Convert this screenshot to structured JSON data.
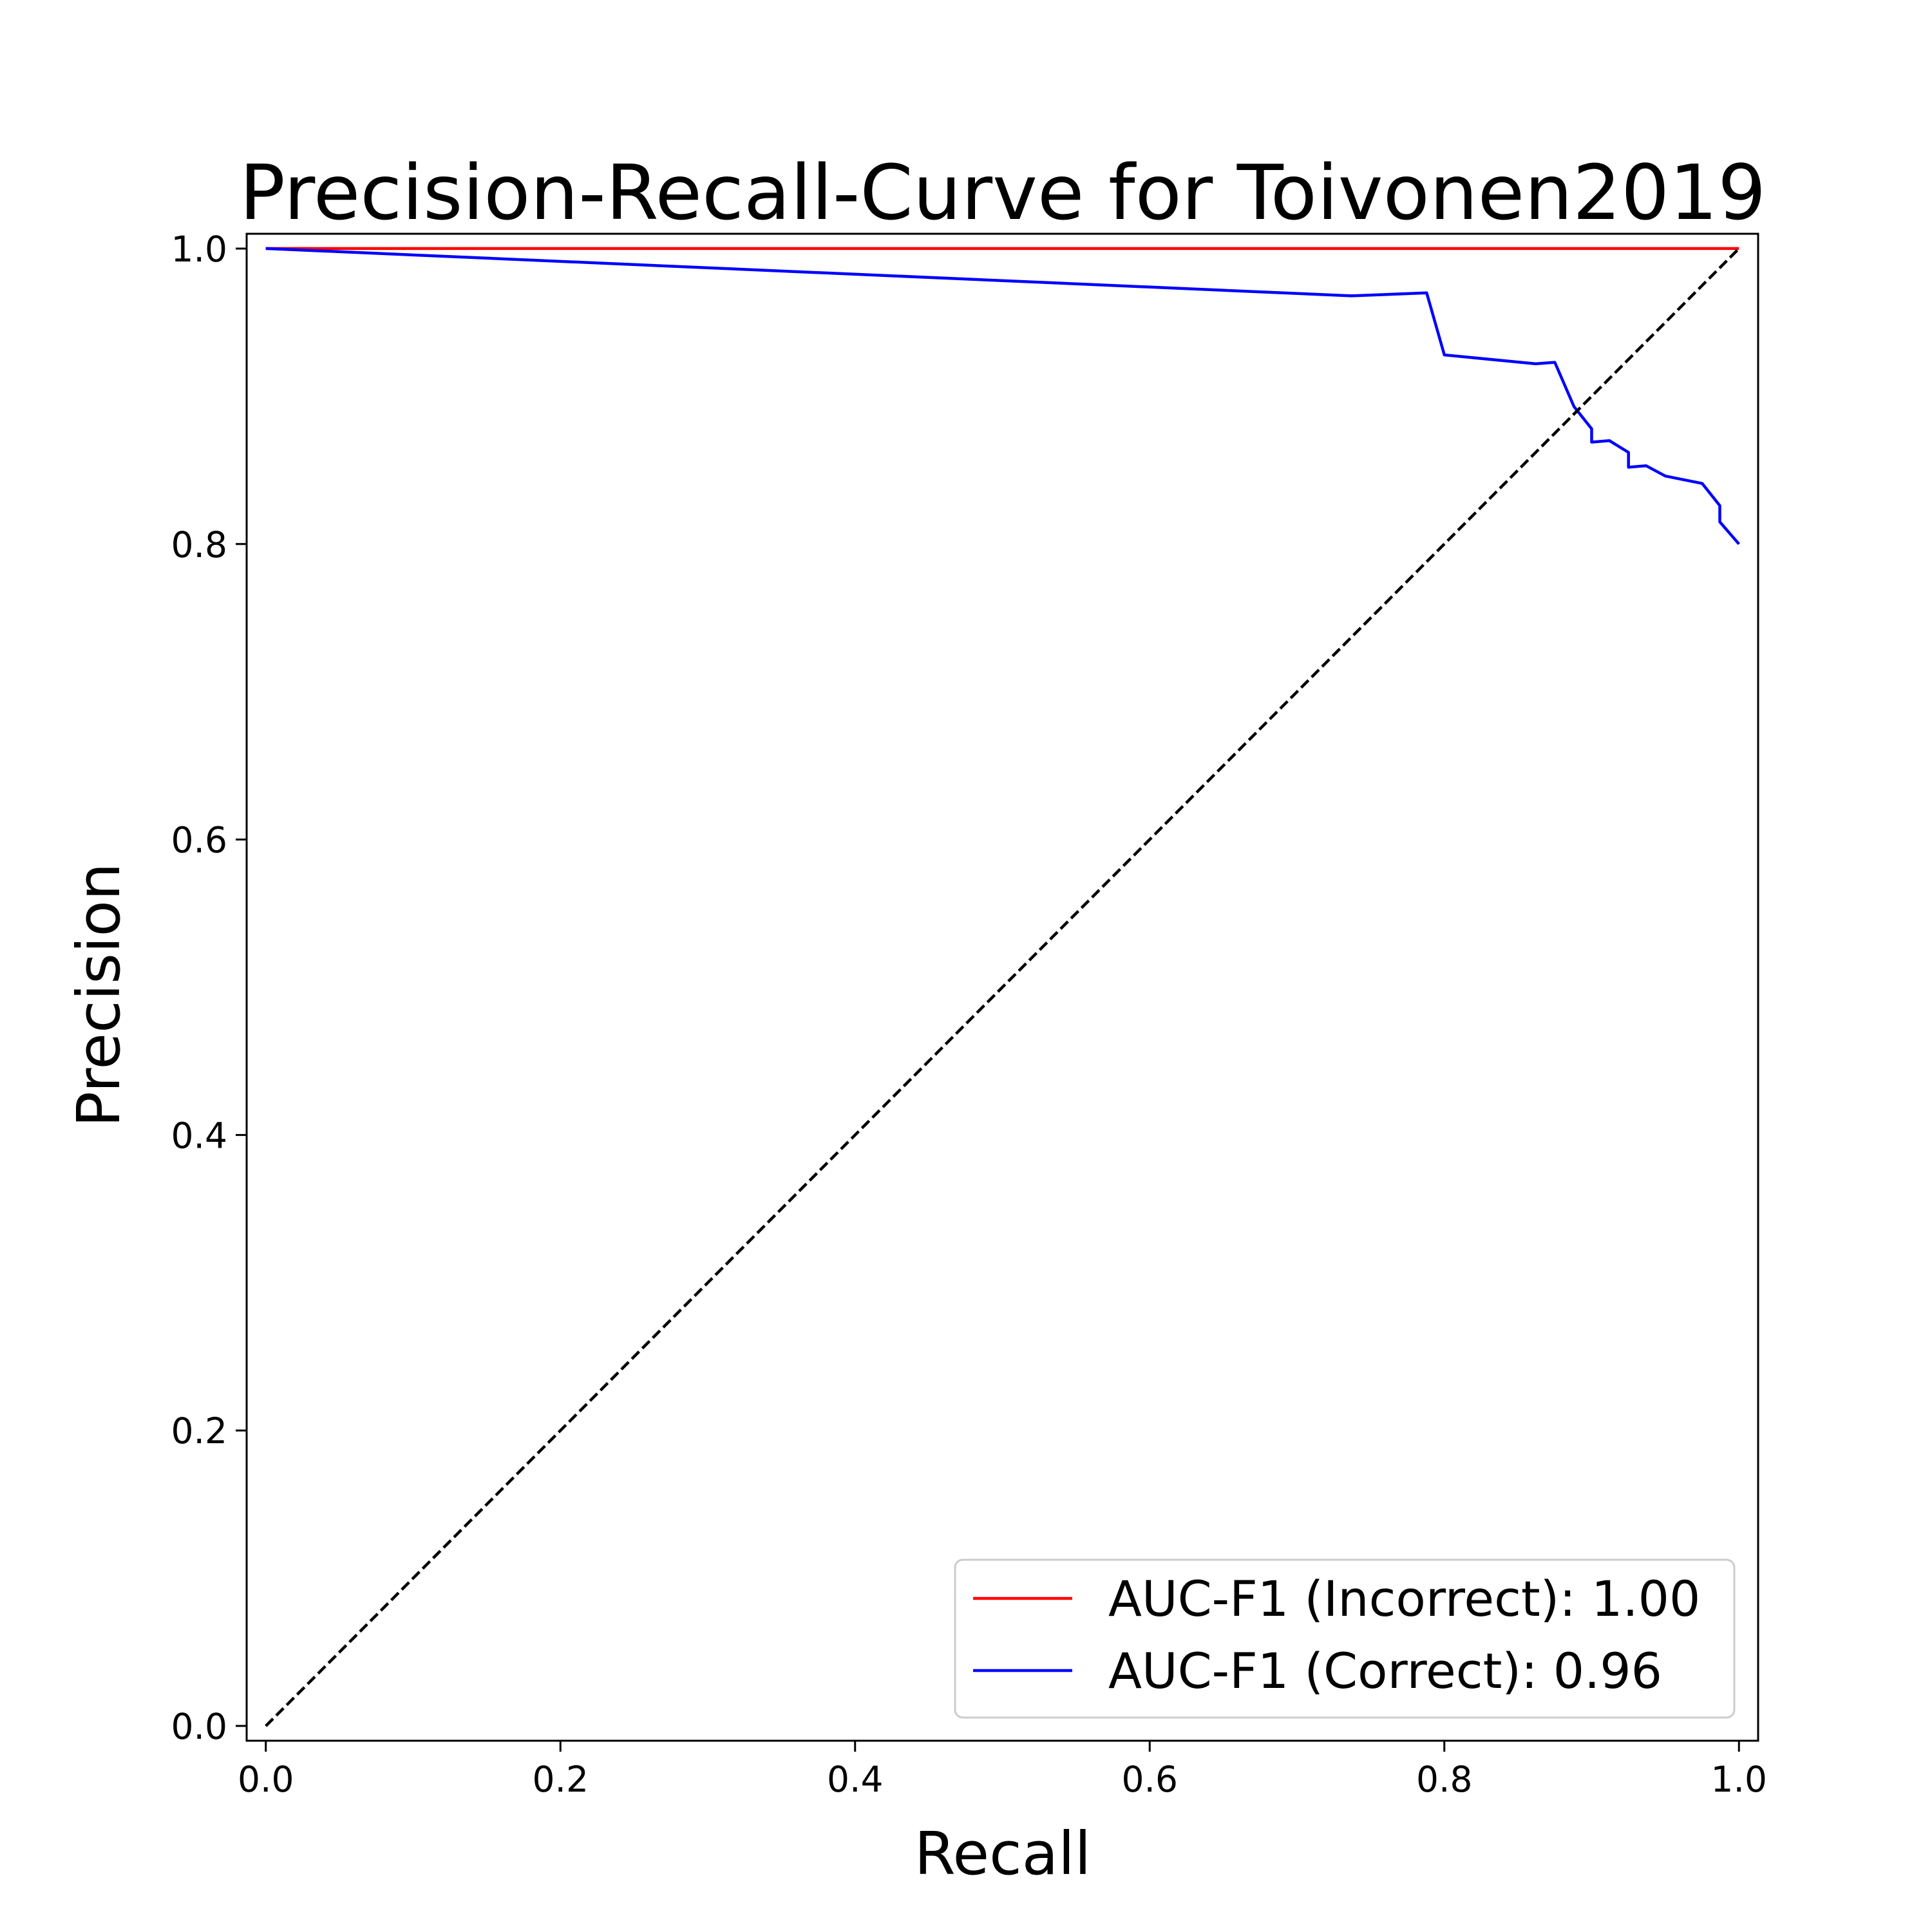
{
  "chart_data": {
    "type": "line",
    "title": "Precision-Recall-Curve for Toivonen2019",
    "xlabel": "Recall",
    "ylabel": "Precision",
    "xlim": [
      -0.013,
      1.013
    ],
    "ylim": [
      -0.01,
      1.01
    ],
    "xticks": [
      "0.0",
      "0.2",
      "0.4",
      "0.6",
      "0.8",
      "1.0"
    ],
    "yticks": [
      "0.0",
      "0.2",
      "0.4",
      "0.6",
      "0.8",
      "1.0"
    ],
    "grid": false,
    "legend_position": "lower-right",
    "series": [
      {
        "name": "AUC-F1  (Incorrect): 1.00",
        "color": "#ff0000",
        "style": "solid",
        "x": [
          0.0,
          1.0
        ],
        "y": [
          1.0,
          1.0
        ]
      },
      {
        "name": "AUC-F1  (Correct): 0.96",
        "color": "#0000ff",
        "style": "solid",
        "x": [
          0.0,
          0.737,
          0.788,
          0.8,
          0.862,
          0.875,
          0.888,
          0.9,
          0.9,
          0.912,
          0.925,
          0.925,
          0.937,
          0.95,
          0.975,
          0.987,
          0.987,
          1.0
        ],
        "y": [
          1.0,
          0.968,
          0.97,
          0.928,
          0.922,
          0.923,
          0.893,
          0.878,
          0.869,
          0.87,
          0.862,
          0.852,
          0.853,
          0.846,
          0.841,
          0.826,
          0.815,
          0.8
        ]
      },
      {
        "name": "",
        "color": "#000000",
        "style": "dashed",
        "x": [
          0.0,
          1.0
        ],
        "y": [
          0.0,
          1.0
        ]
      }
    ]
  }
}
